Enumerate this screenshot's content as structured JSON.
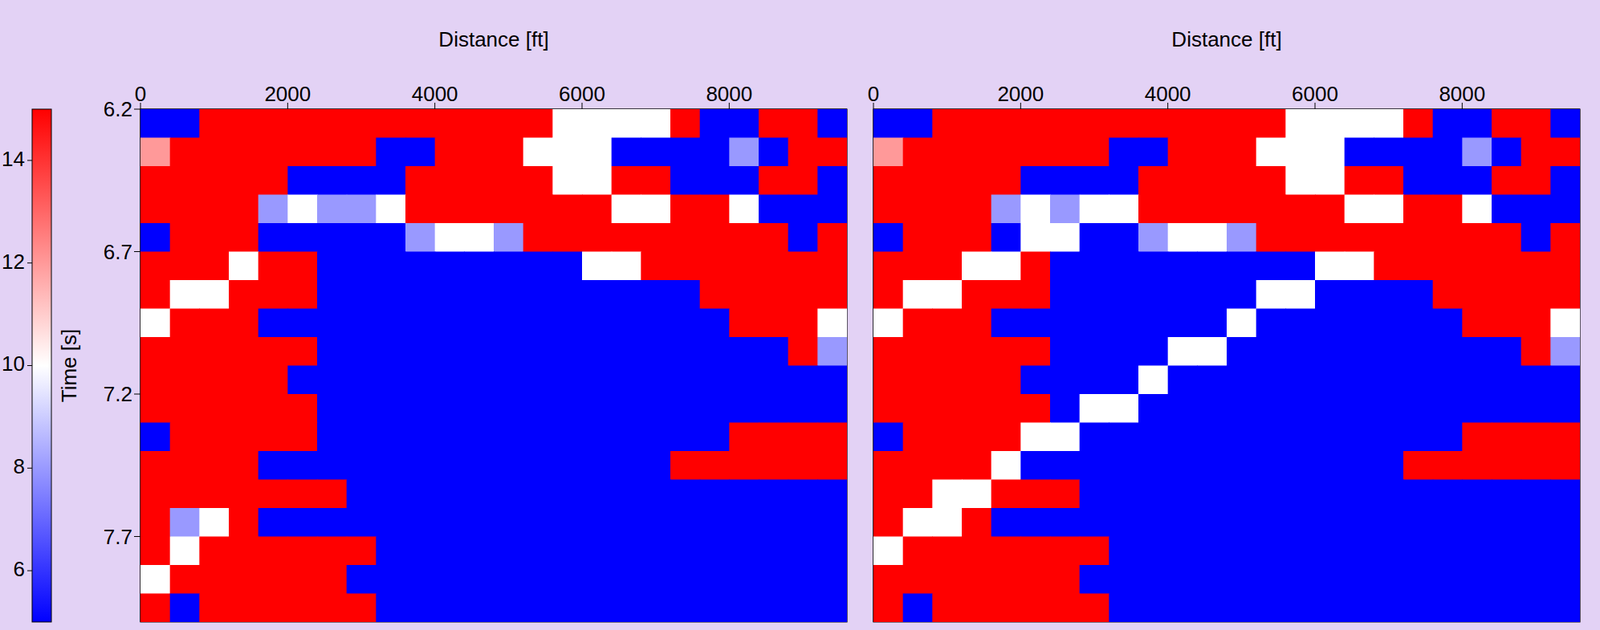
{
  "chart_data": [
    {
      "type": "heatmap",
      "x_label": "Distance [ft]",
      "y_label": "Time [s]",
      "x": [
        200,
        600,
        1000,
        1400,
        1800,
        2200,
        2600,
        3000,
        3400,
        3800,
        4200,
        4600,
        5000,
        5400,
        5800,
        6200,
        6600,
        7000,
        7400,
        7800,
        8200,
        8600,
        9000,
        9400
      ],
      "y": [
        6.25,
        6.35,
        6.45,
        6.55,
        6.65,
        6.75,
        6.85,
        6.95,
        7.05,
        7.15,
        7.25,
        7.35,
        7.45,
        7.55,
        7.65,
        7.75,
        7.85,
        7.95
      ],
      "cells": [
        [
          5,
          5,
          15,
          15,
          15,
          15,
          15,
          15,
          15,
          15,
          15,
          15,
          15,
          15,
          10,
          10,
          10,
          10,
          15,
          5,
          5,
          15,
          15,
          5
        ],
        [
          12,
          15,
          15,
          15,
          15,
          15,
          15,
          15,
          5,
          5,
          15,
          15,
          15,
          10,
          10,
          10,
          5,
          5,
          5,
          5,
          8,
          5,
          15,
          15
        ],
        [
          15,
          15,
          15,
          15,
          15,
          5,
          5,
          5,
          5,
          15,
          15,
          15,
          15,
          15,
          10,
          10,
          15,
          15,
          5,
          5,
          5,
          15,
          15,
          5
        ],
        [
          15,
          15,
          15,
          15,
          8,
          10,
          8,
          8,
          10,
          15,
          15,
          15,
          15,
          15,
          15,
          15,
          10,
          10,
          15,
          15,
          10,
          5,
          5,
          5
        ],
        [
          5,
          15,
          15,
          15,
          5,
          5,
          5,
          5,
          5,
          8,
          10,
          10,
          8,
          15,
          15,
          15,
          15,
          15,
          15,
          15,
          15,
          15,
          5,
          15
        ],
        [
          15,
          15,
          15,
          10,
          15,
          15,
          5,
          5,
          5,
          5,
          5,
          5,
          5,
          5,
          5,
          10,
          10,
          15,
          15,
          15,
          15,
          15,
          15,
          15
        ],
        [
          15,
          10,
          10,
          15,
          15,
          15,
          5,
          5,
          5,
          5,
          5,
          5,
          5,
          5,
          5,
          5,
          5,
          5,
          5,
          15,
          15,
          15,
          15,
          15
        ],
        [
          10,
          15,
          15,
          15,
          5,
          5,
          5,
          5,
          5,
          5,
          5,
          5,
          5,
          5,
          5,
          5,
          5,
          5,
          5,
          5,
          15,
          15,
          15,
          10
        ],
        [
          15,
          15,
          15,
          15,
          15,
          15,
          5,
          5,
          5,
          5,
          5,
          5,
          5,
          5,
          5,
          5,
          5,
          5,
          5,
          5,
          5,
          5,
          15,
          8
        ],
        [
          15,
          15,
          15,
          15,
          15,
          5,
          5,
          5,
          5,
          5,
          5,
          5,
          5,
          5,
          5,
          5,
          5,
          5,
          5,
          5,
          5,
          5,
          5,
          5
        ],
        [
          15,
          15,
          15,
          15,
          15,
          15,
          5,
          5,
          5,
          5,
          5,
          5,
          5,
          5,
          5,
          5,
          5,
          5,
          5,
          5,
          5,
          5,
          5,
          5
        ],
        [
          5,
          15,
          15,
          15,
          15,
          15,
          5,
          5,
          5,
          5,
          5,
          5,
          5,
          5,
          5,
          5,
          5,
          5,
          5,
          5,
          15,
          15,
          15,
          15
        ],
        [
          15,
          15,
          15,
          15,
          5,
          5,
          5,
          5,
          5,
          5,
          5,
          5,
          5,
          5,
          5,
          5,
          5,
          5,
          15,
          15,
          15,
          15,
          15,
          15
        ],
        [
          15,
          15,
          15,
          15,
          15,
          15,
          15,
          5,
          5,
          5,
          5,
          5,
          5,
          5,
          5,
          5,
          5,
          5,
          5,
          5,
          5,
          5,
          5,
          5
        ],
        [
          15,
          8,
          10,
          15,
          5,
          5,
          5,
          5,
          5,
          5,
          5,
          5,
          5,
          5,
          5,
          5,
          5,
          5,
          5,
          5,
          5,
          5,
          5,
          5
        ],
        [
          15,
          10,
          15,
          15,
          15,
          15,
          15,
          15,
          5,
          5,
          5,
          5,
          5,
          5,
          5,
          5,
          5,
          5,
          5,
          5,
          5,
          5,
          5,
          5
        ],
        [
          10,
          15,
          15,
          15,
          15,
          15,
          15,
          5,
          5,
          5,
          5,
          5,
          5,
          5,
          5,
          5,
          5,
          5,
          5,
          5,
          5,
          5,
          5,
          5
        ],
        [
          15,
          5,
          15,
          15,
          15,
          15,
          15,
          15,
          5,
          5,
          5,
          5,
          5,
          5,
          5,
          5,
          5,
          5,
          5,
          5,
          5,
          5,
          5,
          5
        ]
      ],
      "xlim": [
        0,
        9600
      ],
      "xticks": [
        0,
        2000,
        4000,
        6000,
        8000
      ],
      "ylim": [
        6.2,
        8.0
      ],
      "yticks": [
        6.2,
        6.7,
        7.2,
        7.7
      ],
      "colorbar_range": [
        5,
        15
      ],
      "colorbar_ticks": [
        14,
        12,
        10,
        8,
        6
      ]
    },
    {
      "type": "heatmap",
      "x_label": "Distance [ft]",
      "tick_labels": "x",
      "x": [
        200,
        600,
        1000,
        1400,
        1800,
        2200,
        2600,
        3000,
        3400,
        3800,
        4200,
        4600,
        5000,
        5400,
        5800,
        6200,
        6600,
        7000,
        7400,
        7800,
        8200,
        8600,
        9000,
        9400
      ],
      "y": [
        6.25,
        6.35,
        6.45,
        6.55,
        6.65,
        6.75,
        6.85,
        6.95,
        7.05,
        7.15,
        7.25,
        7.35,
        7.45,
        7.55,
        7.65,
        7.75,
        7.85,
        7.95
      ],
      "cells": [
        [
          5,
          5,
          15,
          15,
          15,
          15,
          15,
          15,
          15,
          15,
          15,
          15,
          15,
          15,
          10,
          10,
          10,
          10,
          15,
          5,
          5,
          15,
          15,
          5
        ],
        [
          12,
          15,
          15,
          15,
          15,
          15,
          15,
          15,
          5,
          5,
          15,
          15,
          15,
          10,
          10,
          10,
          5,
          5,
          5,
          5,
          8,
          5,
          15,
          15
        ],
        [
          15,
          15,
          15,
          15,
          15,
          5,
          5,
          5,
          5,
          15,
          15,
          15,
          15,
          15,
          10,
          10,
          15,
          15,
          5,
          5,
          5,
          15,
          15,
          5
        ],
        [
          15,
          15,
          15,
          15,
          8,
          10,
          8,
          10,
          10,
          15,
          15,
          15,
          15,
          15,
          15,
          15,
          10,
          10,
          15,
          15,
          10,
          5,
          5,
          5
        ],
        [
          5,
          15,
          15,
          15,
          5,
          10,
          10,
          5,
          5,
          8,
          10,
          10,
          8,
          15,
          15,
          15,
          15,
          15,
          15,
          15,
          15,
          15,
          5,
          15
        ],
        [
          15,
          15,
          15,
          10,
          10,
          15,
          5,
          5,
          5,
          5,
          5,
          5,
          5,
          5,
          5,
          10,
          10,
          15,
          15,
          15,
          15,
          15,
          15,
          15
        ],
        [
          15,
          10,
          10,
          15,
          15,
          15,
          5,
          5,
          5,
          5,
          5,
          5,
          5,
          10,
          10,
          5,
          5,
          5,
          5,
          15,
          15,
          15,
          15,
          15
        ],
        [
          10,
          15,
          15,
          15,
          5,
          5,
          5,
          5,
          5,
          5,
          5,
          5,
          10,
          5,
          5,
          5,
          5,
          5,
          5,
          5,
          15,
          15,
          15,
          10
        ],
        [
          15,
          15,
          15,
          15,
          15,
          15,
          5,
          5,
          5,
          5,
          10,
          10,
          5,
          5,
          5,
          5,
          5,
          5,
          5,
          5,
          5,
          5,
          15,
          8
        ],
        [
          15,
          15,
          15,
          15,
          15,
          5,
          5,
          5,
          5,
          10,
          5,
          5,
          5,
          5,
          5,
          5,
          5,
          5,
          5,
          5,
          5,
          5,
          5,
          5
        ],
        [
          15,
          15,
          15,
          15,
          15,
          15,
          5,
          10,
          10,
          5,
          5,
          5,
          5,
          5,
          5,
          5,
          5,
          5,
          5,
          5,
          5,
          5,
          5,
          5
        ],
        [
          5,
          15,
          15,
          15,
          15,
          10,
          10,
          5,
          5,
          5,
          5,
          5,
          5,
          5,
          5,
          5,
          5,
          5,
          5,
          5,
          15,
          15,
          15,
          15
        ],
        [
          15,
          15,
          15,
          15,
          10,
          5,
          5,
          5,
          5,
          5,
          5,
          5,
          5,
          5,
          5,
          5,
          5,
          5,
          15,
          15,
          15,
          15,
          15,
          15
        ],
        [
          15,
          15,
          10,
          10,
          15,
          15,
          15,
          5,
          5,
          5,
          5,
          5,
          5,
          5,
          5,
          5,
          5,
          5,
          5,
          5,
          5,
          5,
          5,
          5
        ],
        [
          15,
          10,
          10,
          15,
          5,
          5,
          5,
          5,
          5,
          5,
          5,
          5,
          5,
          5,
          5,
          5,
          5,
          5,
          5,
          5,
          5,
          5,
          5,
          5
        ],
        [
          10,
          15,
          15,
          15,
          15,
          15,
          15,
          15,
          5,
          5,
          5,
          5,
          5,
          5,
          5,
          5,
          5,
          5,
          5,
          5,
          5,
          5,
          5,
          5
        ],
        [
          15,
          15,
          15,
          15,
          15,
          15,
          15,
          5,
          5,
          5,
          5,
          5,
          5,
          5,
          5,
          5,
          5,
          5,
          5,
          5,
          5,
          5,
          5,
          5
        ],
        [
          15,
          5,
          15,
          15,
          15,
          15,
          15,
          15,
          5,
          5,
          5,
          5,
          5,
          5,
          5,
          5,
          5,
          5,
          5,
          5,
          5,
          5,
          5,
          5
        ]
      ],
      "xlim": [
        0,
        9600
      ],
      "xticks": [
        0,
        2000,
        4000,
        6000,
        8000
      ],
      "ylim": [
        6.2,
        8.0
      ]
    }
  ]
}
